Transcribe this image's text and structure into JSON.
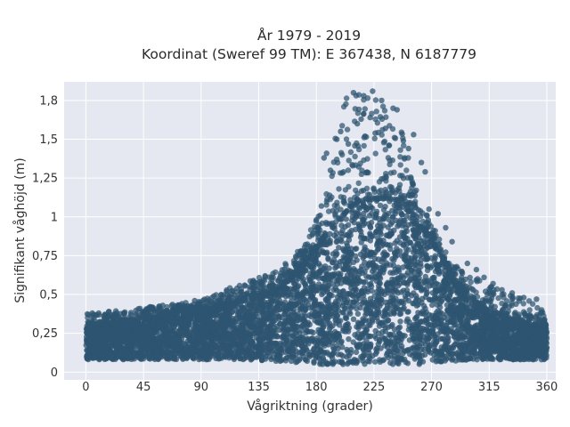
{
  "chart_data": {
    "type": "scatter",
    "title": [
      "År 1979 - 2019",
      "Koordinat (Sweref 99 TM): E 367438, N 6187779"
    ],
    "xlabel": "Vågriktning (grader)",
    "ylabel": "Signifikant våghöjd (m)",
    "xlim": [
      -17,
      367
    ],
    "ylim": [
      -0.05,
      1.87
    ],
    "xticks": [
      0,
      45,
      90,
      135,
      180,
      225,
      270,
      315,
      360
    ],
    "xtick_labels": [
      "0",
      "45",
      "90",
      "135",
      "180",
      "225",
      "270",
      "315",
      "360"
    ],
    "yticks": [
      0,
      0.25,
      0.5,
      0.75,
      1,
      1.25,
      1.5,
      1.75
    ],
    "ytick_labels": [
      "0",
      "0,25",
      "0,5",
      "0,75",
      "1",
      "1,25",
      "1,5",
      "1,8"
    ],
    "grid": true,
    "colors": {
      "marker": "#2e5470",
      "plot_bg": "#e5e8f0",
      "grid": "#ffffff"
    },
    "envelope": {
      "direction": [
        0,
        20,
        45,
        90,
        120,
        150,
        170,
        185,
        195,
        205,
        215,
        225,
        235,
        245,
        255,
        265,
        275,
        285,
        300,
        315,
        330,
        345,
        360
      ],
      "dense_top": [
        0.3,
        0.31,
        0.34,
        0.39,
        0.45,
        0.53,
        0.68,
        0.85,
        0.95,
        1.05,
        1.1,
        1.12,
        1.12,
        1.1,
        1.02,
        0.9,
        0.78,
        0.62,
        0.47,
        0.39,
        0.34,
        0.31,
        0.3
      ],
      "dense_bottom": [
        0.08,
        0.08,
        0.08,
        0.08,
        0.08,
        0.07,
        0.06,
        0.05,
        0.05,
        0.05,
        0.05,
        0.05,
        0.05,
        0.05,
        0.05,
        0.05,
        0.06,
        0.07,
        0.08,
        0.08,
        0.08,
        0.08,
        0.08
      ],
      "max": [
        0.38,
        0.39,
        0.42,
        0.46,
        0.57,
        0.65,
        0.82,
        1.08,
        1.58,
        1.8,
        1.79,
        1.82,
        1.7,
        1.6,
        1.28,
        1.03,
        0.88,
        0.72,
        0.63,
        0.56,
        0.5,
        0.47,
        0.36
      ]
    },
    "outliers": [
      {
        "x": 209,
        "y": 1.8
      },
      {
        "x": 217,
        "y": 1.78
      },
      {
        "x": 224,
        "y": 1.81
      },
      {
        "x": 222,
        "y": 1.64
      },
      {
        "x": 215,
        "y": 1.63
      },
      {
        "x": 240,
        "y": 1.7
      },
      {
        "x": 243,
        "y": 1.69
      },
      {
        "x": 231,
        "y": 1.75
      },
      {
        "x": 226,
        "y": 1.54
      },
      {
        "x": 234,
        "y": 1.57
      },
      {
        "x": 256,
        "y": 1.53
      },
      {
        "x": 199,
        "y": 1.55
      },
      {
        "x": 205,
        "y": 1.47
      },
      {
        "x": 196,
        "y": 1.5
      },
      {
        "x": 188,
        "y": 1.41
      },
      {
        "x": 252,
        "y": 1.44
      },
      {
        "x": 262,
        "y": 1.35
      },
      {
        "x": 265,
        "y": 1.29
      },
      {
        "x": 186,
        "y": 1.38
      },
      {
        "x": 191,
        "y": 1.3
      },
      {
        "x": 248,
        "y": 1.49
      },
      {
        "x": 218,
        "y": 1.52
      },
      {
        "x": 212,
        "y": 1.6
      },
      {
        "x": 237,
        "y": 1.46
      },
      {
        "x": 275,
        "y": 1.02
      },
      {
        "x": 281,
        "y": 0.93
      },
      {
        "x": 286,
        "y": 0.84
      },
      {
        "x": 298,
        "y": 0.7
      },
      {
        "x": 305,
        "y": 0.66
      },
      {
        "x": 311,
        "y": 0.61
      },
      {
        "x": 318,
        "y": 0.57
      },
      {
        "x": 325,
        "y": 0.53
      },
      {
        "x": 333,
        "y": 0.51
      },
      {
        "x": 342,
        "y": 0.48
      },
      {
        "x": 352,
        "y": 0.47
      },
      {
        "x": 356,
        "y": 0.4
      },
      {
        "x": 5,
        "y": 0.38
      },
      {
        "x": 10,
        "y": 0.38
      },
      {
        "x": 18,
        "y": 0.39
      },
      {
        "x": 30,
        "y": 0.38
      },
      {
        "x": 50,
        "y": 0.42
      },
      {
        "x": 60,
        "y": 0.43
      },
      {
        "x": 75,
        "y": 0.44
      },
      {
        "x": 85,
        "y": 0.46
      },
      {
        "x": 100,
        "y": 0.49
      },
      {
        "x": 110,
        "y": 0.52
      },
      {
        "x": 118,
        "y": 0.54
      },
      {
        "x": 124,
        "y": 0.56
      },
      {
        "x": 130,
        "y": 0.57
      },
      {
        "x": 137,
        "y": 0.58
      },
      {
        "x": 145,
        "y": 0.61
      },
      {
        "x": 152,
        "y": 0.62
      },
      {
        "x": 160,
        "y": 0.64
      },
      {
        "x": 166,
        "y": 0.7
      },
      {
        "x": 172,
        "y": 0.74
      },
      {
        "x": 176,
        "y": 0.8
      },
      {
        "x": 181,
        "y": 0.9
      },
      {
        "x": 183,
        "y": 1.01
      },
      {
        "x": 184,
        "y": 1.07
      },
      {
        "x": 268,
        "y": 1.05
      }
    ]
  }
}
